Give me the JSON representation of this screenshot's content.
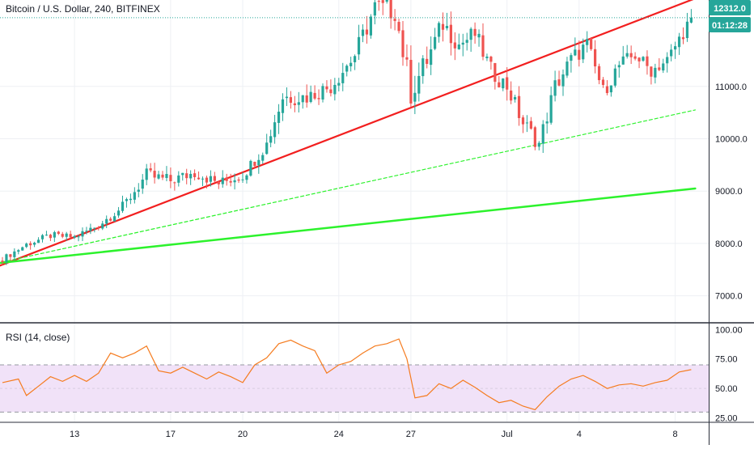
{
  "header": {
    "title": "Bitcoin / U.S. Dollar, 240, BITFINEX"
  },
  "price_badge": {
    "value": "12312.0",
    "countdown": "01:12:28",
    "color": "#26a69a"
  },
  "rsi_header": {
    "label": "RSI (14, close)"
  },
  "colors": {
    "up": "#26a69a",
    "down": "#ef5350",
    "trend_red": "#f21f1f",
    "trend_green": "#2cf22c",
    "rsi_line": "#f57c20",
    "rsi_band": "#f1e2f8",
    "grid": "#eef0f4",
    "axis_text": "#131722"
  },
  "chart_data": [
    {
      "type": "candlestick",
      "title": "Bitcoin / U.S. Dollar, 240, BITFINEX",
      "ylim": [
        6500,
        12650
      ],
      "y_ticks": [
        "7000.0",
        "8000.0",
        "9000.0",
        "10000.0",
        "11000.0"
      ],
      "x_ticks": [
        {
          "label": "13",
          "bar": 18
        },
        {
          "label": "17",
          "bar": 42
        },
        {
          "label": "20",
          "bar": 60
        },
        {
          "label": "24",
          "bar": 84
        },
        {
          "label": "27",
          "bar": 102
        },
        {
          "label": "Jul",
          "bar": 126
        },
        {
          "label": "4",
          "bar": 144
        },
        {
          "label": "8",
          "bar": 168
        }
      ],
      "last_price": 12312.0,
      "anchors": [
        {
          "bar": 0,
          "close": 7700,
          "range": 120
        },
        {
          "bar": 6,
          "close": 7980,
          "range": 140
        },
        {
          "bar": 12,
          "close": 8150,
          "range": 160
        },
        {
          "bar": 18,
          "close": 8120,
          "range": 150
        },
        {
          "bar": 24,
          "close": 8350,
          "range": 180
        },
        {
          "bar": 30,
          "close": 8700,
          "range": 220
        },
        {
          "bar": 36,
          "close": 9300,
          "range": 300
        },
        {
          "bar": 42,
          "close": 9200,
          "range": 280
        },
        {
          "bar": 48,
          "close": 9350,
          "range": 260
        },
        {
          "bar": 54,
          "close": 9150,
          "range": 240
        },
        {
          "bar": 60,
          "close": 9300,
          "range": 260
        },
        {
          "bar": 66,
          "close": 9900,
          "range": 300
        },
        {
          "bar": 70,
          "close": 10800,
          "range": 400
        },
        {
          "bar": 76,
          "close": 10800,
          "range": 350
        },
        {
          "bar": 82,
          "close": 11000,
          "range": 350
        },
        {
          "bar": 88,
          "close": 11600,
          "range": 400
        },
        {
          "bar": 93,
          "close": 12500,
          "range": 500
        },
        {
          "bar": 98,
          "close": 12450,
          "range": 500
        },
        {
          "bar": 102,
          "close": 10900,
          "range": 600
        },
        {
          "bar": 106,
          "close": 11500,
          "range": 500
        },
        {
          "bar": 110,
          "close": 12200,
          "range": 450
        },
        {
          "bar": 114,
          "close": 11800,
          "range": 400
        },
        {
          "bar": 118,
          "close": 12000,
          "range": 400
        },
        {
          "bar": 122,
          "close": 11300,
          "range": 400
        },
        {
          "bar": 126,
          "close": 11000,
          "range": 350
        },
        {
          "bar": 130,
          "close": 10300,
          "range": 400
        },
        {
          "bar": 134,
          "close": 9900,
          "range": 350
        },
        {
          "bar": 138,
          "close": 11000,
          "range": 400
        },
        {
          "bar": 142,
          "close": 11500,
          "range": 400
        },
        {
          "bar": 146,
          "close": 11800,
          "range": 350
        },
        {
          "bar": 150,
          "close": 10900,
          "range": 350
        },
        {
          "bar": 154,
          "close": 11400,
          "range": 350
        },
        {
          "bar": 158,
          "close": 11600,
          "range": 320
        },
        {
          "bar": 162,
          "close": 11300,
          "range": 300
        },
        {
          "bar": 166,
          "close": 11500,
          "range": 300
        },
        {
          "bar": 169,
          "close": 11900,
          "range": 320
        },
        {
          "bar": 172,
          "close": 12312,
          "range": 300
        }
      ],
      "trendlines": [
        {
          "name": "red-trendline",
          "color": "#f21f1f",
          "width": 2.2,
          "dash": "",
          "from": {
            "bar": -1.5,
            "price": 7550
          },
          "to": {
            "bar": 173,
            "price": 12680
          }
        },
        {
          "name": "green-dashed-trendline",
          "color": "#2cf22c",
          "width": 1.2,
          "dash": "4,3",
          "from": {
            "bar": -1.5,
            "price": 7620
          },
          "to": {
            "bar": 173,
            "price": 10550
          }
        },
        {
          "name": "green-solid-trendline",
          "color": "#2cf22c",
          "width": 2.5,
          "dash": "",
          "from": {
            "bar": -1.5,
            "price": 7620
          },
          "to": {
            "bar": 173,
            "price": 9050
          }
        }
      ]
    },
    {
      "type": "line",
      "title": "RSI (14, close)",
      "ylim": [
        22,
        105
      ],
      "y_ticks": [
        "100.00",
        "75.00",
        "50.00",
        "25.00"
      ],
      "band": [
        30,
        70
      ],
      "points": [
        [
          0,
          55
        ],
        [
          4,
          58
        ],
        [
          6,
          44
        ],
        [
          9,
          52
        ],
        [
          12,
          60
        ],
        [
          15,
          56
        ],
        [
          18,
          61
        ],
        [
          21,
          56
        ],
        [
          24,
          63
        ],
        [
          27,
          80
        ],
        [
          30,
          76
        ],
        [
          33,
          80
        ],
        [
          36,
          86
        ],
        [
          39,
          65
        ],
        [
          42,
          63
        ],
        [
          45,
          68
        ],
        [
          48,
          63
        ],
        [
          51,
          58
        ],
        [
          54,
          64
        ],
        [
          57,
          60
        ],
        [
          60,
          55
        ],
        [
          63,
          70
        ],
        [
          66,
          76
        ],
        [
          69,
          88
        ],
        [
          72,
          91
        ],
        [
          75,
          86
        ],
        [
          78,
          82
        ],
        [
          81,
          63
        ],
        [
          84,
          70
        ],
        [
          87,
          73
        ],
        [
          90,
          80
        ],
        [
          93,
          86
        ],
        [
          96,
          88
        ],
        [
          99,
          92
        ],
        [
          101,
          75
        ],
        [
          103,
          42
        ],
        [
          106,
          44
        ],
        [
          109,
          54
        ],
        [
          112,
          50
        ],
        [
          115,
          57
        ],
        [
          118,
          51
        ],
        [
          121,
          44
        ],
        [
          124,
          38
        ],
        [
          127,
          40
        ],
        [
          130,
          35
        ],
        [
          133,
          32
        ],
        [
          136,
          43
        ],
        [
          139,
          52
        ],
        [
          142,
          58
        ],
        [
          145,
          61
        ],
        [
          148,
          56
        ],
        [
          151,
          50
        ],
        [
          154,
          53
        ],
        [
          157,
          54
        ],
        [
          160,
          52
        ],
        [
          163,
          55
        ],
        [
          166,
          57
        ],
        [
          169,
          64
        ],
        [
          172,
          66
        ]
      ]
    }
  ]
}
